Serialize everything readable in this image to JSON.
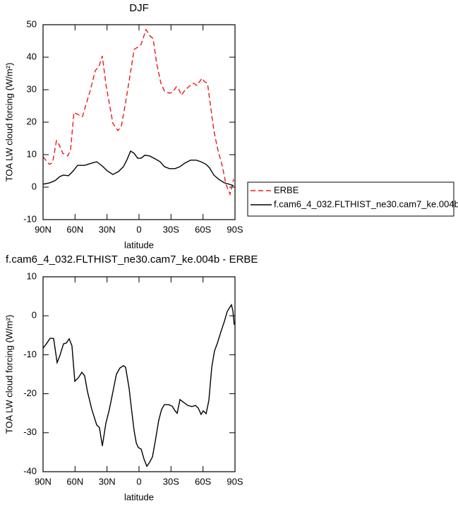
{
  "chart_data": [
    {
      "type": "line",
      "title": "DJF",
      "x_label": "latitude",
      "y_label": "TOA LW cloud forcing (W/m²)",
      "xlim": [
        90,
        -90
      ],
      "xticks": [
        {
          "value": 90,
          "label": "90N"
        },
        {
          "value": 60,
          "label": "60N"
        },
        {
          "value": 30,
          "label": "30N"
        },
        0,
        {
          "value": -30,
          "label": "30S"
        },
        {
          "value": -60,
          "label": "60S"
        },
        {
          "value": -90,
          "label": "90S"
        }
      ],
      "ylim": [
        -10,
        50
      ],
      "yticks": [
        -10,
        0,
        10,
        20,
        30,
        40,
        50
      ],
      "legend": "right",
      "series": [
        {
          "name": "ERBE",
          "color": "#e8191e",
          "linestyle": "dashed",
          "x": [
            90,
            84,
            81,
            77.4,
            74.8,
            71.5,
            66.8,
            64.2,
            61,
            57.6,
            53,
            51,
            45.7,
            41,
            37.7,
            34.4,
            31,
            24.5,
            19.8,
            16.5,
            12.6,
            7.3,
            4.6,
            0,
            -2,
            -6.6,
            -9.9,
            -13.2,
            -16.6,
            -20.5,
            -23.8,
            -28.5,
            -31.8,
            -35,
            -37,
            -39.7,
            -43,
            -47,
            -51,
            -54.3,
            -59,
            -61.6,
            -64.2,
            -66.9,
            -70.2,
            -73.5,
            -78.1,
            -81.4,
            -85.4,
            -88.7
          ],
          "values": [
            9.3,
            7,
            7.6,
            14.3,
            13,
            10.4,
            9.6,
            11.5,
            23,
            22.4,
            21.7,
            24,
            29.8,
            35.9,
            37,
            40.4,
            31.5,
            19.6,
            17.4,
            18.9,
            26,
            36.7,
            42.4,
            43.3,
            44,
            48.5,
            46.7,
            45.7,
            38,
            32,
            29.6,
            28.9,
            29.3,
            30.9,
            30.4,
            28.3,
            29.8,
            31,
            32,
            31.3,
            33.5,
            32.4,
            32,
            25.4,
            17.4,
            12,
            6.5,
            1,
            -2.2,
            2.4
          ]
        },
        {
          "name": "f.cam6_4_032.FLTHIST_ne30.cam7_ke.004b",
          "color": "#000000",
          "linestyle": "solid",
          "x": [
            90,
            84,
            78.7,
            74.1,
            70.8,
            66.2,
            62.2,
            57.6,
            51,
            44.3,
            39.7,
            34.4,
            29.8,
            24.5,
            19.2,
            14.6,
            11.2,
            7.9,
            4.6,
            1.3,
            -2,
            -5.3,
            -9.9,
            -15.2,
            -19.9,
            -23.8,
            -28.5,
            -33.8,
            -38.4,
            -43,
            -48.3,
            -53.6,
            -58.2,
            -62.9,
            -66.2,
            -70.2,
            -74.8,
            -80.1,
            -84.7,
            -88.7
          ],
          "values": [
            0.9,
            1.3,
            2,
            3.3,
            3.7,
            3.5,
            4.8,
            6.7,
            6.7,
            7.4,
            7.8,
            6.5,
            5,
            3.9,
            4.8,
            6.3,
            8.5,
            11.1,
            10.4,
            8.9,
            8.9,
            9.8,
            9.6,
            8.7,
            7.8,
            6.3,
            5.7,
            5.7,
            6.3,
            7.4,
            8.3,
            8.3,
            7.8,
            7,
            5.9,
            3.7,
            2.4,
            1.3,
            0.9,
            0.4
          ]
        }
      ]
    },
    {
      "type": "line",
      "title": "f.cam6_4_032.FLTHIST_ne30.cam7_ke.004b - ERBE",
      "x_label": "latitude",
      "y_label": "TOA LW cloud forcing (W/m²)",
      "xlim": [
        90,
        -90
      ],
      "xticks": [
        {
          "value": 90,
          "label": "90N"
        },
        {
          "value": 60,
          "label": "60N"
        },
        {
          "value": 30,
          "label": "30N"
        },
        0,
        {
          "value": -30,
          "label": "30S"
        },
        {
          "value": -60,
          "label": "60S"
        },
        {
          "value": -90,
          "label": "90S"
        }
      ],
      "ylim": [
        -40,
        10
      ],
      "yticks": [
        -40,
        -30,
        -20,
        -10,
        0,
        10
      ],
      "series": [
        {
          "color": "#000000",
          "linestyle": "solid",
          "x": [
            90,
            87.4,
            83.4,
            80.1,
            76.8,
            74.1,
            70.8,
            68.2,
            65.5,
            62.9,
            60.2,
            56.9,
            53.6,
            51,
            48.3,
            44.3,
            39.7,
            37.1,
            34.4,
            31.1,
            27.8,
            24.5,
            21.2,
            17.9,
            14.6,
            12.6,
            9.3,
            6.6,
            4.6,
            2.6,
            0.7,
            -2,
            -4.6,
            -7.3,
            -9.9,
            -12.6,
            -15.2,
            -18.5,
            -21.2,
            -23.8,
            -27.8,
            -31.1,
            -33.8,
            -35.8,
            -38.4,
            -41.7,
            -45.7,
            -49.6,
            -52.9,
            -55.6,
            -58.2,
            -60.2,
            -62.9,
            -65.5,
            -68.2,
            -70.8,
            -73.5,
            -76.8,
            -80.1,
            -82.7,
            -84.7,
            -86.7,
            -88,
            -89.3
          ],
          "values": [
            -8.3,
            -7.4,
            -5.8,
            -5.8,
            -12,
            -10.1,
            -7.2,
            -7,
            -5.9,
            -7.7,
            -16.8,
            -15.9,
            -14.5,
            -15.4,
            -19.5,
            -24,
            -28,
            -28.7,
            -33.4,
            -27.6,
            -24,
            -19.5,
            -15,
            -13.4,
            -12.8,
            -13.2,
            -18.6,
            -25,
            -29.5,
            -32.6,
            -33.8,
            -34.2,
            -36.7,
            -38.6,
            -37.6,
            -36.2,
            -32.2,
            -26.8,
            -24,
            -22.8,
            -22.8,
            -23.2,
            -24.4,
            -25,
            -21.5,
            -22.2,
            -23,
            -23.3,
            -23,
            -23.7,
            -25.3,
            -24.4,
            -25.1,
            -21.7,
            -13.2,
            -9,
            -7,
            -4.1,
            -1.4,
            1.1,
            2,
            2.8,
            1.3,
            -2.3
          ]
        }
      ]
    }
  ]
}
